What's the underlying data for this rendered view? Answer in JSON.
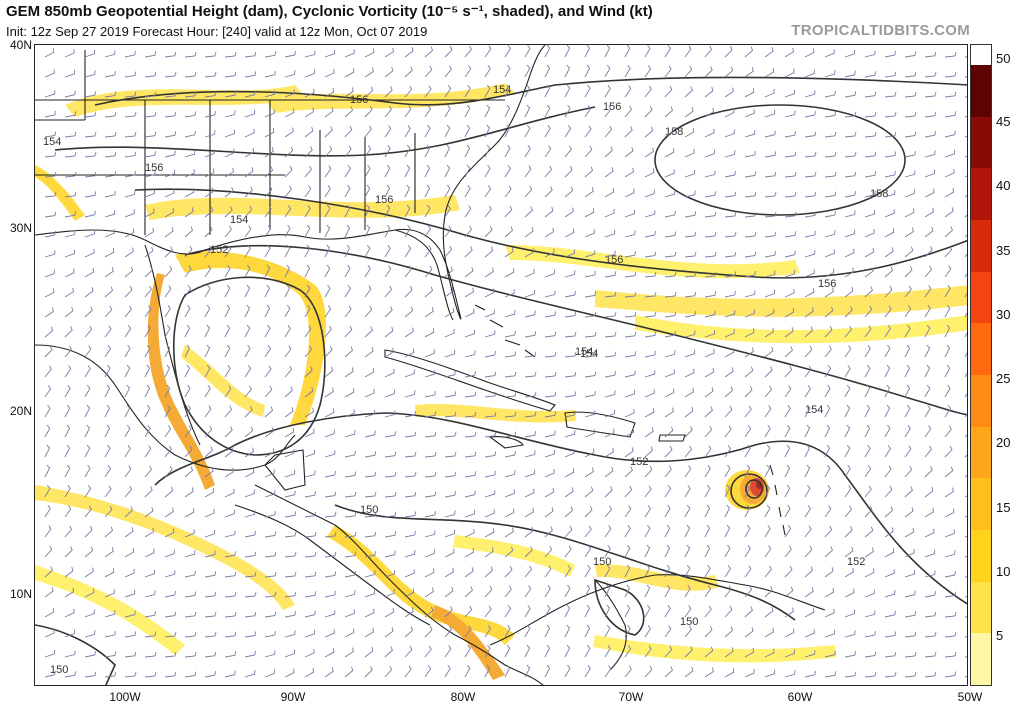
{
  "header": {
    "title": "GEM 850mb Geopotential Height (dam), Cyclonic Vorticity (10⁻⁵ s⁻¹, shaded), and Wind (kt)",
    "subtitle": "Init: 12z Sep 27 2019   Forecast Hour: [240]   valid at 12z Mon, Oct 07 2019",
    "brand": "TROPICALTIDBITS.COM"
  },
  "axes": {
    "lat_labels": [
      "40N",
      "30N",
      "20N",
      "10N"
    ],
    "lon_labels": [
      "100W",
      "90W",
      "80W",
      "70W",
      "60W",
      "50W"
    ]
  },
  "colorbar": {
    "labels": [
      "50",
      "45",
      "40",
      "35",
      "30",
      "25",
      "20",
      "15",
      "10",
      "5"
    ],
    "colors": [
      "#fff7a8",
      "#ffe24a",
      "#ffd21c",
      "#ffbf1a",
      "#ffa51a",
      "#ff8a14",
      "#ff6a10",
      "#f34510",
      "#d92b0c",
      "#b3150a",
      "#8a0a06",
      "#5e0303"
    ]
  },
  "contour_labels": [
    "156",
    "154",
    "158",
    "156",
    "154",
    "156",
    "154",
    "152",
    "154",
    "158",
    "156",
    "156",
    "154",
    "152",
    "150",
    "152",
    "150",
    "150",
    "150",
    "154",
    "156"
  ],
  "map_colors": {
    "land_outline": "#222222",
    "height_contour": "#333333",
    "vort_light": "#ffee55",
    "vort_mid": "#ffd21c",
    "vort_strong": "#f39c12",
    "vort_core": "#b3150a",
    "wind_barb": "#7a7aa8"
  }
}
